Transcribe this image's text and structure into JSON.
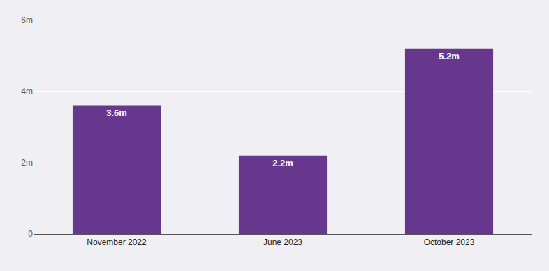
{
  "chart_data": {
    "type": "bar",
    "categories": [
      "November 2022",
      "June 2023",
      "October 2023"
    ],
    "values": [
      3.6,
      2.2,
      5.2
    ],
    "value_labels": [
      "3.6m",
      "2.2m",
      "5.2m"
    ],
    "data_labels": true,
    "color": "#66378c",
    "ylim": [
      0,
      6
    ],
    "yticks": [
      0,
      {
        "value": 2,
        "label": "2m"
      },
      {
        "value": 4,
        "label": "4m"
      },
      {
        "value": 6,
        "label": "6m"
      }
    ],
    "grid": true
  }
}
